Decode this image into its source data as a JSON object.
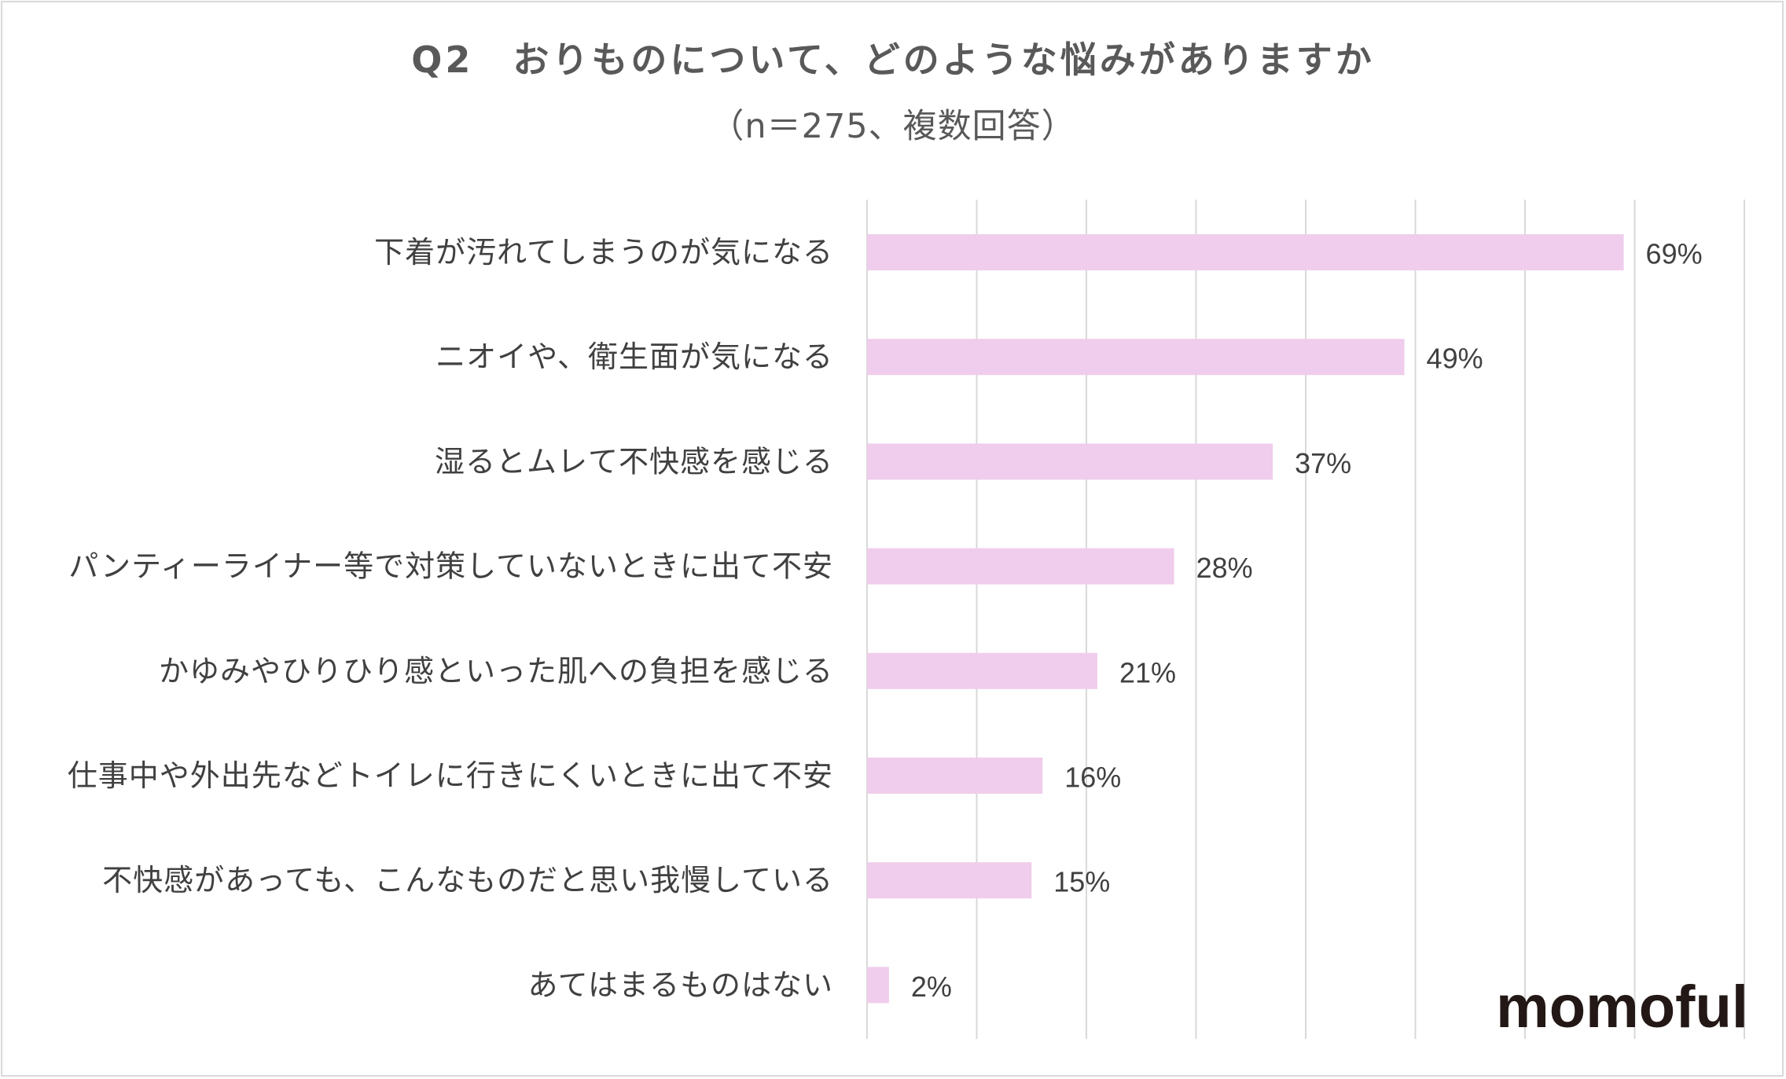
{
  "title": "Q2　おりものについて、どのような悩みがありますか",
  "subtitle": "（n＝275、複数回答）",
  "brand": "momoful",
  "colors": {
    "bar": "#f0cdec",
    "grid": "#d9d9d9",
    "text": "#404040",
    "title": "#595959",
    "brand": "#231815"
  },
  "chart_data": {
    "type": "bar",
    "orientation": "horizontal",
    "title": "Q2　おりものについて、どのような悩みがありますか",
    "subtitle": "（n＝275、複数回答）",
    "xlim": [
      0,
      80
    ],
    "grid": true,
    "categories": [
      "下着が汚れてしまうのが気になる",
      "ニオイや、衛生面が気になる",
      "湿るとムレて不快感を感じる",
      "パンティーライナー等で対策していないときに出て不安",
      "かゆみやひりひり感といった肌への負担を感じる",
      "仕事中や外出先などトイレに行きにくいときに出て不安",
      "不快感があっても、こんなものだと思い我慢している",
      "あてはまるものはない"
    ],
    "values": [
      69,
      49,
      37,
      28,
      21,
      16,
      15,
      2
    ],
    "value_labels": [
      "69%",
      "49%",
      "37%",
      "28%",
      "21%",
      "16%",
      "15%",
      "2%"
    ]
  }
}
